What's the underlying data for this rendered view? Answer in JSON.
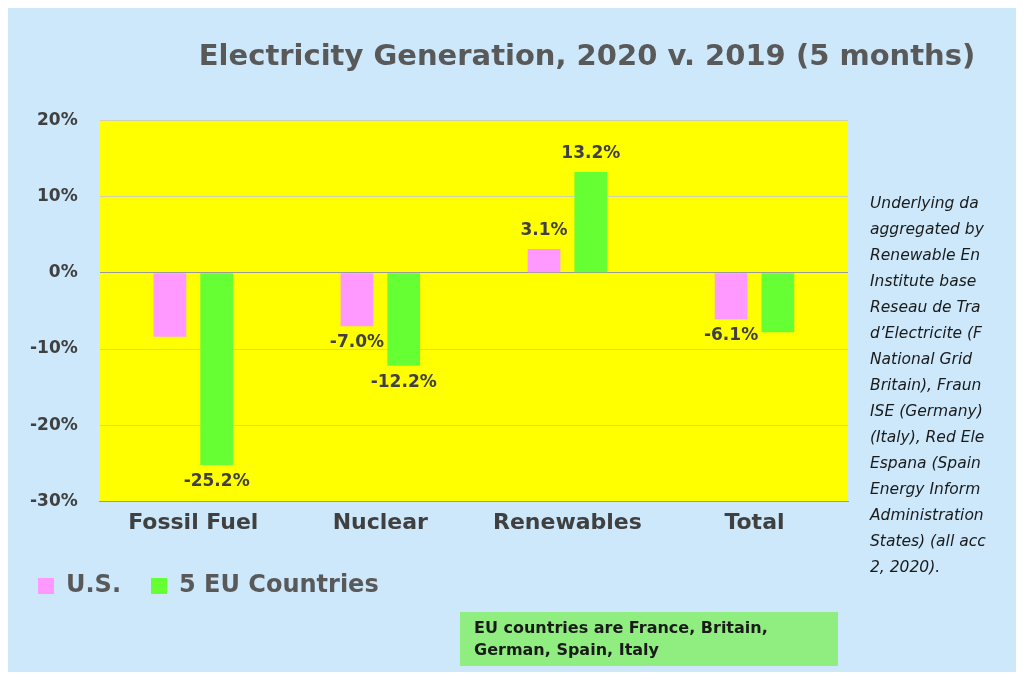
{
  "chart_data": {
    "type": "bar",
    "title": "Electricity Generation, 2020 v. 2019 (5 months)",
    "categories": [
      "Fossil Fuel",
      "Nuclear",
      "Renewables",
      "Total"
    ],
    "series": [
      {
        "name": "U.S.",
        "color": "#ff99ff",
        "values": [
          -8.4,
          -7.0,
          3.1,
          -6.1
        ],
        "value_labels": [
          null,
          "-7.0%",
          "3.1%",
          "-6.1%"
        ]
      },
      {
        "name": "5 EU Countries",
        "color": "#66ff33",
        "values": [
          -25.2,
          -12.2,
          13.2,
          -7.8
        ],
        "value_labels": [
          "-25.2%",
          "-12.2%",
          "13.2%",
          null
        ]
      }
    ],
    "ylim": [
      -30,
      20
    ],
    "yticks": [
      {
        "value": -30,
        "label": "-30%"
      },
      {
        "value": -20,
        "label": "-20%"
      },
      {
        "value": -10,
        "label": "-10%"
      },
      {
        "value": 0,
        "label": "0%"
      },
      {
        "value": 10,
        "label": "10%"
      },
      {
        "value": 20,
        "label": "20%"
      }
    ],
    "grid": "y",
    "legend": "bottom left",
    "annotations": [
      "Underlying da",
      "aggregated by",
      "Renewable En",
      "Institute base",
      "Reseau de Tra",
      "d’Electricite (F",
      "National Grid",
      "Britain), Fraun",
      "ISE (Germany)",
      "(Italy), Red Ele",
      "Espana (Spain",
      "Energy Inform",
      "Administration",
      "States) (all acc",
      "2, 2020).",
      "EU countries are France, Britain, German, Spain, Italy"
    ]
  }
}
